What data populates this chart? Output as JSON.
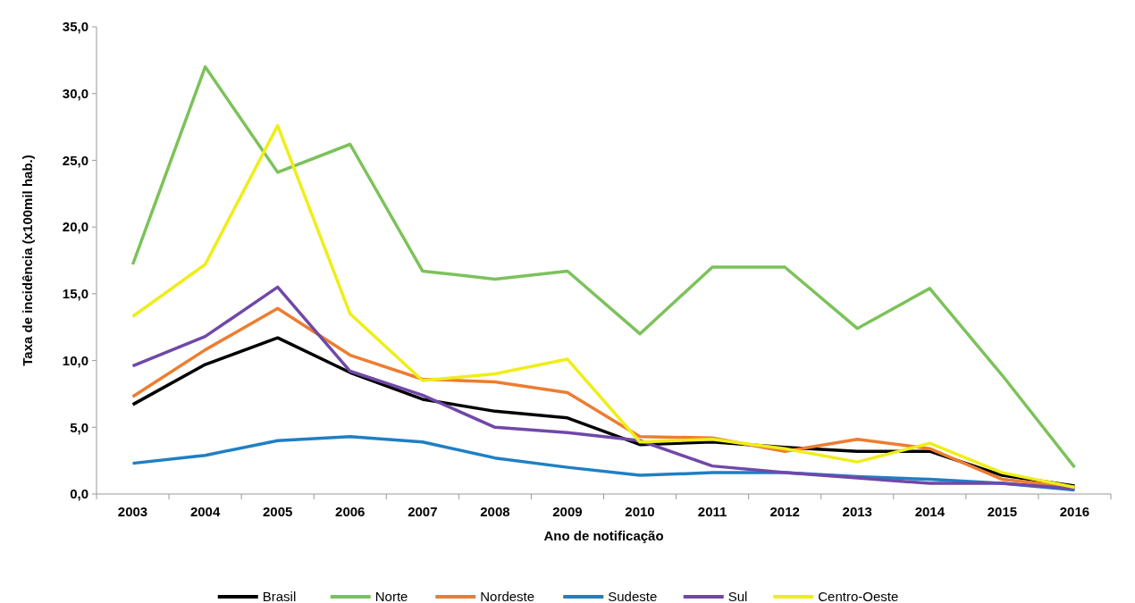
{
  "chart_data": {
    "type": "line",
    "xlabel": "Ano de notificação",
    "ylabel": "Taxa de incidência (x100mil hab.)",
    "categories": [
      "2003",
      "2004",
      "2005",
      "2006",
      "2007",
      "2008",
      "2009",
      "2010",
      "2011",
      "2012",
      "2013",
      "2014",
      "2015",
      "2016"
    ],
    "series": [
      {
        "name": "Brasil",
        "color": "#000000",
        "values": [
          6.7,
          9.7,
          11.7,
          9.1,
          7.1,
          6.2,
          5.7,
          3.7,
          3.9,
          3.5,
          3.2,
          3.2,
          1.4,
          0.6
        ]
      },
      {
        "name": "Norte",
        "color": "#7cc25a",
        "values": [
          17.2,
          32.0,
          24.1,
          26.2,
          16.7,
          16.1,
          16.7,
          12.0,
          17.0,
          17.0,
          12.4,
          15.4,
          8.9,
          2.0
        ]
      },
      {
        "name": "Nordeste",
        "color": "#ed7d31",
        "values": [
          7.3,
          10.8,
          13.9,
          10.4,
          8.6,
          8.4,
          7.6,
          4.3,
          4.2,
          3.2,
          4.1,
          3.4,
          1.1,
          0.5
        ]
      },
      {
        "name": "Sudeste",
        "color": "#1f7fc4",
        "values": [
          2.3,
          2.9,
          4.0,
          4.3,
          3.9,
          2.7,
          2.0,
          1.4,
          1.6,
          1.6,
          1.3,
          1.1,
          0.8,
          0.3
        ]
      },
      {
        "name": "Sul",
        "color": "#7048a8",
        "values": [
          9.6,
          11.8,
          15.5,
          9.2,
          7.4,
          5.0,
          4.6,
          4.0,
          2.1,
          1.6,
          1.2,
          0.8,
          0.8,
          0.4
        ]
      },
      {
        "name": "Centro-Oeste",
        "color": "#eeee1a",
        "values": [
          13.3,
          17.2,
          27.6,
          13.5,
          8.5,
          9.0,
          10.1,
          3.9,
          4.1,
          3.4,
          2.4,
          3.8,
          1.6,
          0.5
        ]
      }
    ],
    "ylim": [
      0,
      35
    ],
    "yticks": [
      {
        "value": 0,
        "label": "0,0"
      },
      {
        "value": 5,
        "label": "5,0"
      },
      {
        "value": 10,
        "label": "10,0"
      },
      {
        "value": 15,
        "label": "15,0"
      },
      {
        "value": 20,
        "label": "20,0"
      },
      {
        "value": 25,
        "label": "25,0"
      },
      {
        "value": 30,
        "label": "30,0"
      },
      {
        "value": 35,
        "label": "35,0"
      }
    ],
    "grid": false,
    "legend": "bottom",
    "marker": "none",
    "line_style": "solid"
  }
}
